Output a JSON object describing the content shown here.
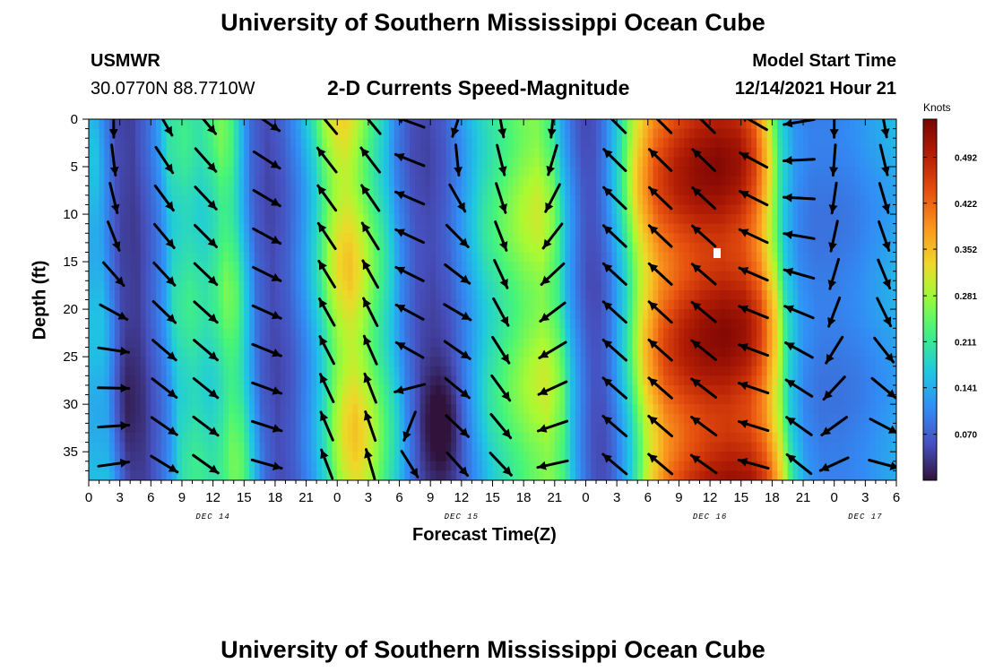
{
  "page": {
    "title_top": "University of Southern Mississippi Ocean Cube",
    "title_bottom": "University of Southern Mississippi Ocean Cube",
    "station_id": "USMWR",
    "station_coords": "30.0770N  88.7710W",
    "plot_title": "2-D Currents Speed-Magnitude",
    "start_time_label": "Model Start Time",
    "start_time_value": "12/14/2021 Hour 21"
  },
  "colors": {
    "arrow": "#000000",
    "background": "#ffffff",
    "marker": "#ffffff"
  },
  "chart_data": {
    "type": "heatmap",
    "title": "2-D Currents Speed-Magnitude",
    "xlabel": "Forecast Time(Z)",
    "ylabel": "Depth (ft)",
    "x_hour_range": [
      0,
      78
    ],
    "y_range": [
      0,
      38
    ],
    "x_tick_labels": [
      "0",
      "3",
      "6",
      "9",
      "12",
      "15",
      "18",
      "21",
      "0",
      "3",
      "6",
      "9",
      "12",
      "15",
      "18",
      "21",
      "0",
      "3",
      "6",
      "9",
      "12",
      "15",
      "18",
      "21",
      "0",
      "3",
      "6"
    ],
    "y_tick_labels": [
      "0",
      "5",
      "10",
      "15",
      "20",
      "25",
      "30",
      "35"
    ],
    "y_tick_values": [
      0,
      5,
      10,
      15,
      20,
      25,
      30,
      35
    ],
    "date_labels": [
      {
        "label": "DEC 14",
        "hour": 12
      },
      {
        "label": "DEC 15",
        "hour": 36
      },
      {
        "label": "DEC 16",
        "hour": 60
      },
      {
        "label": "DEC 17",
        "hour": 75
      }
    ],
    "colorbar": {
      "title": "Knots",
      "ticks": [
        "0.070",
        "0.141",
        "0.211",
        "0.281",
        "0.352",
        "0.422",
        "0.492"
      ],
      "tick_values": [
        0.07,
        0.141,
        0.211,
        0.281,
        0.352,
        0.422,
        0.492
      ],
      "range": [
        0.0,
        0.55
      ]
    },
    "speed_profile_by_hour": [
      {
        "hour": 0,
        "speed": 0.16
      },
      {
        "hour": 1,
        "speed": 0.1
      },
      {
        "hour": 2,
        "speed": 0.05
      },
      {
        "hour": 3.5,
        "speed": 0.04
      },
      {
        "hour": 5,
        "speed": 0.08
      },
      {
        "hour": 6,
        "speed": 0.12
      },
      {
        "hour": 7,
        "speed": 0.2
      },
      {
        "hour": 8.5,
        "speed": 0.22
      },
      {
        "hour": 10,
        "speed": 0.2
      },
      {
        "hour": 11,
        "speed": 0.22
      },
      {
        "hour": 12,
        "speed": 0.26
      },
      {
        "hour": 13,
        "speed": 0.24
      },
      {
        "hour": 14,
        "speed": 0.16
      },
      {
        "hour": 15,
        "speed": 0.08
      },
      {
        "hour": 16.5,
        "speed": 0.05
      },
      {
        "hour": 18,
        "speed": 0.07
      },
      {
        "hour": 19.5,
        "speed": 0.12
      },
      {
        "hour": 21,
        "speed": 0.2
      },
      {
        "hour": 22,
        "speed": 0.28
      },
      {
        "hour": 23,
        "speed": 0.33
      },
      {
        "hour": 24,
        "speed": 0.35
      },
      {
        "hour": 25,
        "speed": 0.32
      },
      {
        "hour": 26.5,
        "speed": 0.25
      },
      {
        "hour": 28,
        "speed": 0.18
      },
      {
        "hour": 29,
        "speed": 0.11
      },
      {
        "hour": 30.5,
        "speed": 0.06
      },
      {
        "hour": 32,
        "speed": 0.05
      },
      {
        "hour": 33.5,
        "speed": 0.07
      },
      {
        "hour": 35,
        "speed": 0.12
      },
      {
        "hour": 37,
        "speed": 0.2
      },
      {
        "hour": 39,
        "speed": 0.25
      },
      {
        "hour": 41,
        "speed": 0.29
      },
      {
        "hour": 42.5,
        "speed": 0.31
      },
      {
        "hour": 44,
        "speed": 0.26
      },
      {
        "hour": 45,
        "speed": 0.16
      },
      {
        "hour": 46,
        "speed": 0.1
      },
      {
        "hour": 47,
        "speed": 0.06
      },
      {
        "hour": 48,
        "speed": 0.06
      },
      {
        "hour": 49,
        "speed": 0.1
      },
      {
        "hour": 50.5,
        "speed": 0.2
      },
      {
        "hour": 52,
        "speed": 0.34
      },
      {
        "hour": 54,
        "speed": 0.45
      },
      {
        "hour": 56,
        "speed": 0.5
      },
      {
        "hour": 58,
        "speed": 0.53
      },
      {
        "hour": 60,
        "speed": 0.54
      },
      {
        "hour": 62,
        "speed": 0.52
      },
      {
        "hour": 63.5,
        "speed": 0.46
      },
      {
        "hour": 65,
        "speed": 0.33
      },
      {
        "hour": 66,
        "speed": 0.2
      },
      {
        "hour": 67.5,
        "speed": 0.12
      },
      {
        "hour": 69,
        "speed": 0.1
      },
      {
        "hour": 71,
        "speed": 0.1
      },
      {
        "hour": 73,
        "speed": 0.11
      },
      {
        "hour": 75,
        "speed": 0.13
      },
      {
        "hour": 78,
        "speed": 0.16
      }
    ],
    "arrow_columns": [
      {
        "hour": 2.4,
        "dir": [
          [
            0,
            180
          ],
          [
            12,
            160
          ],
          [
            25,
            95
          ],
          [
            38,
            80
          ]
        ]
      },
      {
        "hour": 7.3,
        "dir": [
          [
            0,
            150
          ],
          [
            38,
            120
          ]
        ]
      },
      {
        "hour": 11.3,
        "dir": [
          [
            0,
            140
          ],
          [
            38,
            125
          ]
        ]
      },
      {
        "hour": 17.2,
        "dir": [
          [
            0,
            125
          ],
          [
            38,
            105
          ]
        ]
      },
      {
        "hour": 23.0,
        "dir": [
          [
            0,
            320
          ],
          [
            38,
            340
          ]
        ]
      },
      {
        "hour": 27.2,
        "dir": [
          [
            0,
            320
          ],
          [
            38,
            345
          ]
        ]
      },
      {
        "hour": 31.0,
        "dir": [
          [
            0,
            290
          ],
          [
            25,
            300
          ],
          [
            38,
            125
          ]
        ]
      },
      {
        "hour": 35.6,
        "dir": [
          [
            0,
            200
          ],
          [
            10,
            140
          ],
          [
            20,
            120
          ],
          [
            38,
            140
          ]
        ]
      },
      {
        "hour": 39.8,
        "dir": [
          [
            0,
            170
          ],
          [
            38,
            135
          ]
        ]
      },
      {
        "hour": 44.8,
        "dir": [
          [
            0,
            185
          ],
          [
            15,
            225
          ],
          [
            38,
            260
          ]
        ]
      },
      {
        "hour": 50.8,
        "dir": [
          [
            0,
            315
          ],
          [
            38,
            310
          ]
        ]
      },
      {
        "hour": 55.2,
        "dir": [
          [
            0,
            315
          ],
          [
            38,
            310
          ]
        ]
      },
      {
        "hour": 59.4,
        "dir": [
          [
            0,
            315
          ],
          [
            38,
            305
          ]
        ]
      },
      {
        "hour": 64.2,
        "dir": [
          [
            0,
            300
          ],
          [
            38,
            285
          ]
        ]
      },
      {
        "hour": 68.6,
        "dir": [
          [
            0,
            260
          ],
          [
            25,
            300
          ],
          [
            38,
            310
          ]
        ]
      },
      {
        "hour": 72.0,
        "dir": [
          [
            0,
            180
          ],
          [
            20,
            200
          ],
          [
            38,
            250
          ]
        ]
      },
      {
        "hour": 76.8,
        "dir": [
          [
            0,
            170
          ],
          [
            20,
            155
          ],
          [
            38,
            100
          ]
        ]
      }
    ]
  }
}
